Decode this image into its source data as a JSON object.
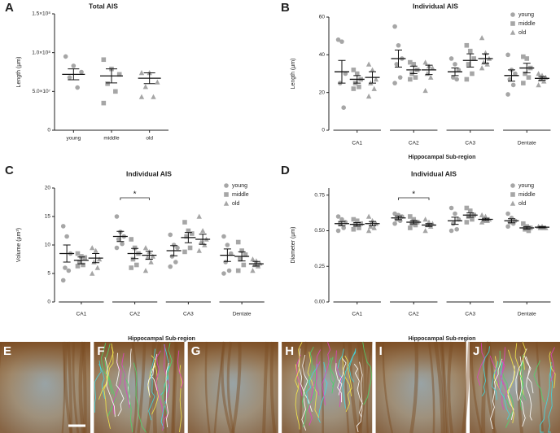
{
  "chart_data": [
    {
      "type": "strip",
      "label": "A",
      "title": "Total AIS",
      "y_label": "Length (µm)",
      "categories": [
        "young",
        "middle",
        "old"
      ],
      "markers": [
        "circle",
        "square",
        "triangle"
      ],
      "color": "#a6a6a6",
      "points": [
        [
          95000000,
          83000000,
          75000000,
          68000000,
          55000000
        ],
        [
          91000000,
          79000000,
          72000000,
          60000000,
          50000000,
          35000000
        ],
        [
          74000000,
          74000000,
          62000000,
          56000000,
          43000000,
          43000000
        ]
      ],
      "means": [
        72000000,
        70000000,
        67000000
      ],
      "sems": [
        7000000,
        9000000,
        7000000
      ],
      "ylim": [
        0,
        150000000
      ],
      "yticks": [
        0,
        {
          "value": 50000000,
          "label": "5.0×10⁷"
        },
        {
          "value": 100000000,
          "label": "1.0×10⁸"
        },
        {
          "value": 150000000,
          "label": "1.5×10⁸"
        }
      ]
    },
    {
      "type": "strip",
      "label": "B",
      "title": "Individual AIS",
      "y_label": "Length (µm)",
      "x_label": "Hippocampal Sub-region",
      "categories": [
        "CA1",
        "CA2",
        "CA3",
        "Dentate"
      ],
      "legend": "upper right",
      "series": [
        {
          "name": "young",
          "marker": "circle",
          "color": "#a6a6a6",
          "points": [
            [
              48,
              47,
              30,
              25,
              12
            ],
            [
              55,
              45,
              38,
              35,
              28,
              25
            ],
            [
              38,
              35,
              32,
              28,
              27
            ],
            [
              40,
              32,
              30,
              27,
              24,
              19
            ]
          ],
          "means": [
            31,
            38,
            31,
            29
          ],
          "sems": [
            6,
            4.5,
            2,
            3
          ]
        },
        {
          "name": "middle",
          "marker": "square",
          "color": "#a6a6a6",
          "points": [
            [
              32,
              30,
              27,
              25,
              23,
              22
            ],
            [
              36,
              35,
              32,
              30,
              28,
              27
            ],
            [
              45,
              42,
              38,
              35,
              30,
              27
            ],
            [
              39,
              38,
              33,
              30,
              28,
              25
            ]
          ],
          "means": [
            27,
            32,
            37,
            33
          ],
          "sems": [
            2,
            2,
            3.5,
            2.5
          ]
        },
        {
          "name": "old",
          "marker": "triangle",
          "color": "#a6a6a6",
          "points": [
            [
              35,
              32,
              27,
              25,
              22,
              18
            ],
            [
              36,
              34,
              33,
              30,
              28,
              21
            ],
            [
              49,
              41,
              38,
              36,
              35,
              33
            ],
            [
              30,
              29,
              28,
              27,
              26,
              24
            ]
          ],
          "means": [
            28,
            32,
            38,
            27.5
          ],
          "sems": [
            3,
            2.5,
            2.5,
            1
          ]
        }
      ],
      "ylim": [
        0,
        60
      ],
      "yticks": [
        0,
        20,
        40,
        60
      ]
    },
    {
      "type": "strip",
      "label": "C",
      "title": "Individual AIS",
      "y_label": "Volume (µm³)",
      "x_label": "Hippocampal Sub-region",
      "categories": [
        "CA1",
        "CA2",
        "CA3",
        "Dentate"
      ],
      "legend": "upper right",
      "annotation": "*",
      "series": [
        {
          "name": "young",
          "marker": "circle",
          "color": "#a6a6a6",
          "points": [
            [
              13.3,
              11.5,
              8.5,
              6,
              5.5,
              3.8
            ],
            [
              15,
              12.3,
              11.5,
              11,
              10.2,
              9.5
            ],
            [
              11.8,
              10,
              9.5,
              8,
              7,
              6.2
            ],
            [
              11.5,
              10,
              8.5,
              7,
              5.5,
              5
            ]
          ],
          "means": [
            8.5,
            11.5,
            9,
            8.2
          ],
          "sems": [
            1.5,
            0.9,
            0.9,
            1.1
          ]
        },
        {
          "name": "middle",
          "marker": "square",
          "color": "#a6a6a6",
          "points": [
            [
              8.5,
              8,
              7.8,
              7,
              6.5,
              6.3
            ],
            [
              11,
              9.5,
              8.5,
              7.5,
              6.5,
              6
            ],
            [
              14,
              12.5,
              12,
              11.5,
              9.5,
              8.8
            ],
            [
              10.5,
              9,
              8.3,
              7.5,
              6.5,
              5.5
            ]
          ],
          "means": [
            7.3,
            8.5,
            11.3,
            8
          ],
          "sems": [
            0.6,
            0.9,
            0.9,
            0.8
          ]
        },
        {
          "name": "old",
          "marker": "triangle",
          "color": "#a6a6a6",
          "points": [
            [
              9.5,
              9,
              7.5,
              7,
              6,
              5
            ],
            [
              9.5,
              8.8,
              8,
              7.8,
              7,
              5.5
            ],
            [
              15,
              12.5,
              11,
              10.5,
              10,
              9
            ],
            [
              7.5,
              7.2,
              6.8,
              6.5,
              6.3,
              5.5
            ]
          ],
          "means": [
            7.7,
            8.2,
            11,
            6.7
          ],
          "sems": [
            0.8,
            0.7,
            0.9,
            0.4
          ]
        }
      ],
      "ylim": [
        0,
        20
      ],
      "yticks": [
        0,
        5,
        10,
        15,
        20
      ]
    },
    {
      "type": "strip",
      "label": "D",
      "title": "Individual AIS",
      "y_label": "Diameter (µm)",
      "x_label": "Hippocampal Sub-region",
      "categories": [
        "CA1",
        "CA2",
        "CA3",
        "Dentate"
      ],
      "legend": "upper right",
      "annotation": "*",
      "series": [
        {
          "name": "young",
          "marker": "circle",
          "color": "#a6a6a6",
          "points": [
            [
              0.6,
              0.58,
              0.56,
              0.55,
              0.52,
              0.5
            ],
            [
              0.62,
              0.61,
              0.6,
              0.58,
              0.57,
              0.55
            ],
            [
              0.66,
              0.62,
              0.58,
              0.55,
              0.51,
              0.5
            ],
            [
              0.62,
              0.59,
              0.57,
              0.56,
              0.55,
              0.53
            ]
          ],
          "means": [
            0.55,
            0.59,
            0.57,
            0.57
          ],
          "sems": [
            0.015,
            0.012,
            0.025,
            0.014
          ]
        },
        {
          "name": "middle",
          "marker": "square",
          "color": "#a6a6a6",
          "points": [
            [
              0.58,
              0.57,
              0.55,
              0.54,
              0.52,
              0.51
            ],
            [
              0.6,
              0.58,
              0.56,
              0.55,
              0.54,
              0.52
            ],
            [
              0.66,
              0.64,
              0.61,
              0.6,
              0.58,
              0.56
            ],
            [
              0.55,
              0.53,
              0.52,
              0.51,
              0.5
            ]
          ],
          "means": [
            0.545,
            0.56,
            0.61,
            0.52
          ],
          "sems": [
            0.012,
            0.012,
            0.015,
            0.009
          ]
        },
        {
          "name": "old",
          "marker": "triangle",
          "color": "#a6a6a6",
          "points": [
            [
              0.6,
              0.57,
              0.55,
              0.53,
              0.52,
              0.5
            ],
            [
              0.58,
              0.56,
              0.55,
              0.54,
              0.53,
              0.5
            ],
            [
              0.61,
              0.6,
              0.58,
              0.57,
              0.57,
              0.56
            ],
            [
              0.53,
              0.53,
              0.52,
              0.52,
              0.52
            ]
          ],
          "means": [
            0.55,
            0.54,
            0.58,
            0.525
          ],
          "sems": [
            0.015,
            0.01,
            0.008,
            0.005
          ]
        }
      ],
      "ylim": [
        0,
        0.8
      ],
      "yticks": [
        {
          "value": 0,
          "label": "0.00"
        },
        0.25,
        {
          "value": 0.5,
          "label": "0.50"
        },
        0.75
      ]
    }
  ],
  "images": {
    "panels": [
      "E",
      "F",
      "G",
      "H",
      "I",
      "J"
    ]
  }
}
